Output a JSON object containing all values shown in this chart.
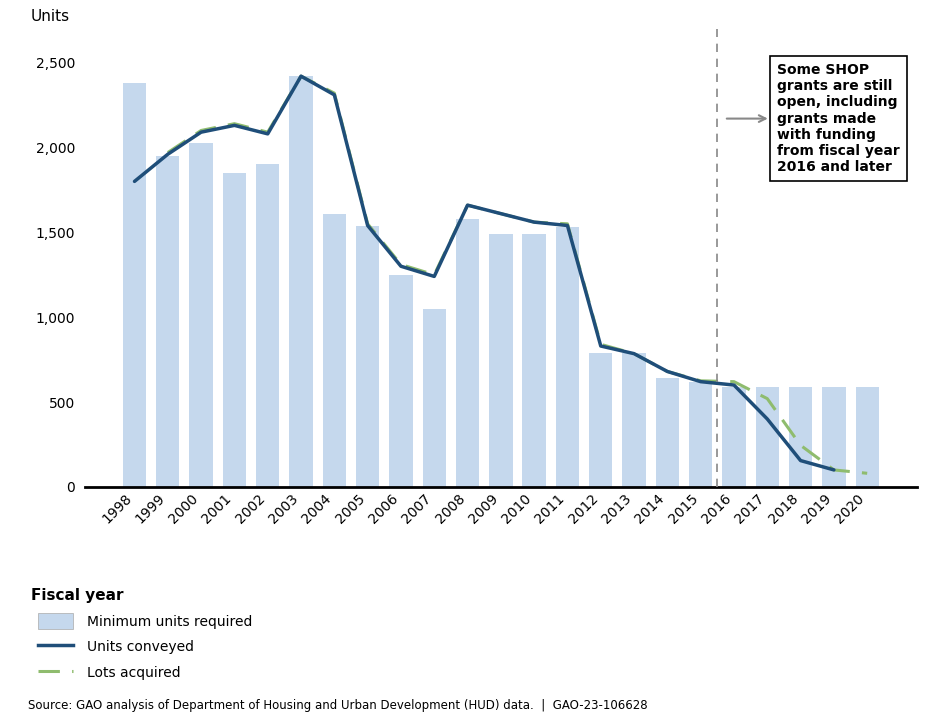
{
  "years": [
    1998,
    1999,
    2000,
    2001,
    2002,
    2003,
    2004,
    2005,
    2006,
    2007,
    2008,
    2009,
    2010,
    2011,
    2012,
    2013,
    2014,
    2015,
    2016,
    2017,
    2018,
    2019,
    2020
  ],
  "bars": [
    2380,
    1950,
    2025,
    1850,
    1900,
    2420,
    1610,
    1540,
    1250,
    1050,
    1580,
    1490,
    1490,
    1530,
    790,
    790,
    640,
    620,
    590,
    590,
    590,
    590,
    590
  ],
  "units_conveyed": [
    1800,
    1960,
    2090,
    2130,
    2080,
    2420,
    2310,
    1540,
    1300,
    1240,
    1660,
    1610,
    1560,
    1540,
    830,
    785,
    680,
    620,
    600,
    400,
    155,
    100,
    null
  ],
  "lots_acquired": [
    null,
    1970,
    2100,
    2140,
    2090,
    2420,
    2320,
    1550,
    1310,
    1250,
    1660,
    1610,
    1560,
    1550,
    840,
    785,
    680,
    625,
    620,
    520,
    245,
    100,
    80
  ],
  "bar_color": "#c5d8ed",
  "units_conveyed_color": "#1f4e79",
  "lots_acquired_color": "#8fbc6e",
  "annotation_text": "Some SHOP\ngrants are still\nopen, including\ngrants made\nwith funding\nfrom fiscal year\n2016 and later",
  "ylabel": "Units",
  "xlabel": "Fiscal year",
  "ylim": [
    0,
    2700
  ],
  "yticks": [
    0,
    500,
    1000,
    1500,
    2000,
    2500
  ],
  "source_text": "Source: GAO analysis of Department of Housing and Urban Development (HUD) data.  |  GAO-23-106628",
  "background_color": "#ffffff"
}
